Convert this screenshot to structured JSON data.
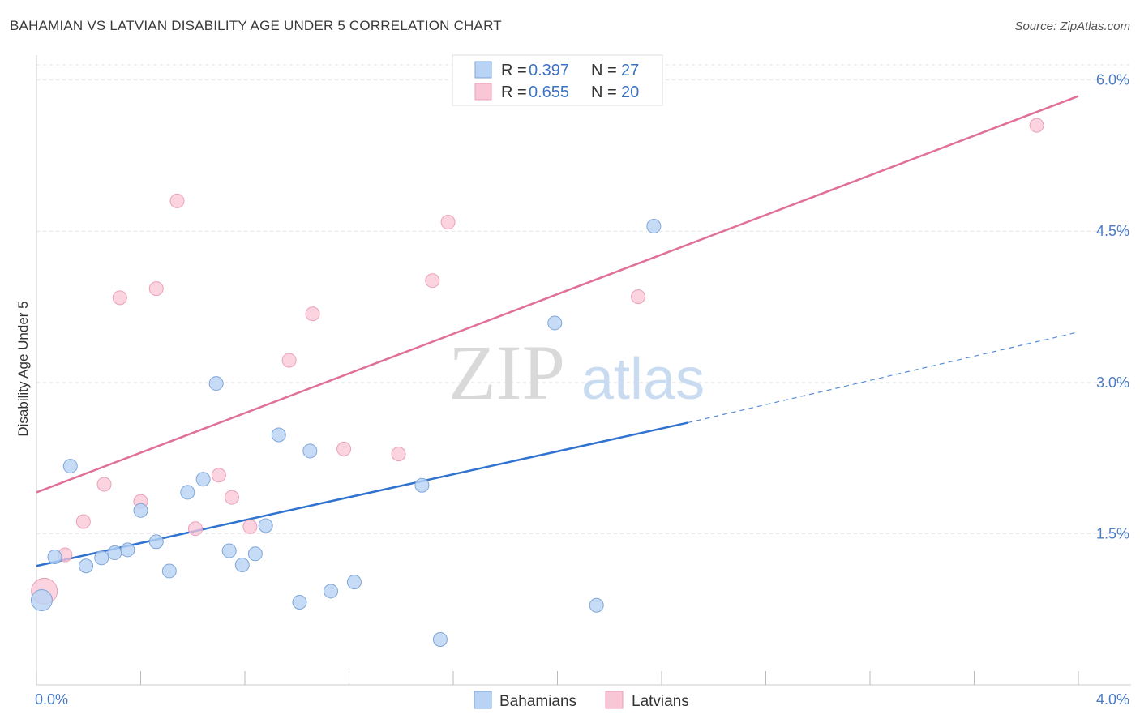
{
  "title": "BAHAMIAN VS LATVIAN DISABILITY AGE UNDER 5 CORRELATION CHART",
  "source": "Source: ZipAtlas.com",
  "watermark": {
    "zip": "ZIP",
    "atlas": "atlas"
  },
  "colors": {
    "bahamians_fill": "#b8d3f4",
    "bahamians_stroke": "#7fa6d9",
    "bahamians_line": "#2f72cf",
    "latvians_fill": "#f9c6d6",
    "latvians_stroke": "#eba0b8",
    "latvians_line": "#e07099"
  },
  "legend_top": [
    {
      "r_label": "R =",
      "r_value": "0.397",
      "n_label": "N =",
      "n_value": "27"
    },
    {
      "r_label": "R =",
      "r_value": "0.655",
      "n_label": "N =",
      "n_value": "20"
    }
  ],
  "chart_data": {
    "type": "scatter",
    "title": "BAHAMIAN VS LATVIAN DISABILITY AGE UNDER 5 CORRELATION CHART",
    "xlabel": "",
    "ylabel": "Disability Age Under 5",
    "xlim": [
      0,
      4.0
    ],
    "ylim": [
      0,
      6.15
    ],
    "x_tick_labels": [
      "0.0%",
      "4.0%"
    ],
    "y_ticks": [
      1.5,
      3.0,
      4.5,
      6.0
    ],
    "y_tick_labels": [
      "1.5%",
      "3.0%",
      "4.5%",
      "6.0%"
    ],
    "grid": true,
    "legend_placement": "bottom-center",
    "series": [
      {
        "name": "Bahamians",
        "points": [
          [
            0.02,
            0.84
          ],
          [
            0.07,
            1.27
          ],
          [
            0.13,
            2.17
          ],
          [
            0.19,
            1.18
          ],
          [
            0.25,
            1.26
          ],
          [
            0.3,
            1.31
          ],
          [
            0.35,
            1.34
          ],
          [
            0.4,
            1.73
          ],
          [
            0.46,
            1.42
          ],
          [
            0.51,
            1.13
          ],
          [
            0.58,
            1.91
          ],
          [
            0.64,
            2.04
          ],
          [
            0.69,
            2.99
          ],
          [
            0.74,
            1.33
          ],
          [
            0.79,
            1.19
          ],
          [
            0.84,
            1.3
          ],
          [
            0.88,
            1.58
          ],
          [
            0.93,
            2.48
          ],
          [
            1.01,
            0.82
          ],
          [
            1.05,
            2.32
          ],
          [
            1.13,
            0.93
          ],
          [
            1.22,
            1.02
          ],
          [
            1.48,
            1.98
          ],
          [
            1.55,
            0.45
          ],
          [
            1.99,
            3.59
          ],
          [
            2.15,
            0.79
          ],
          [
            2.37,
            4.55
          ]
        ],
        "trend": {
          "x0": 0.0,
          "y0": 1.18,
          "x1": 2.5,
          "y1": 2.6,
          "dashed_to_x": 4.0,
          "dashed_to_y": 3.5
        }
      },
      {
        "name": "Latvians",
        "points": [
          [
            0.03,
            0.93
          ],
          [
            0.11,
            1.29
          ],
          [
            0.18,
            1.62
          ],
          [
            0.26,
            1.99
          ],
          [
            0.32,
            3.84
          ],
          [
            0.4,
            1.82
          ],
          [
            0.46,
            3.93
          ],
          [
            0.54,
            4.8
          ],
          [
            0.61,
            1.55
          ],
          [
            0.7,
            2.08
          ],
          [
            0.75,
            1.86
          ],
          [
            0.82,
            1.57
          ],
          [
            0.97,
            3.22
          ],
          [
            1.06,
            3.68
          ],
          [
            1.18,
            2.34
          ],
          [
            1.39,
            2.29
          ],
          [
            1.52,
            4.01
          ],
          [
            1.58,
            4.59
          ],
          [
            2.31,
            3.85
          ],
          [
            3.84,
            5.55
          ]
        ],
        "trend": {
          "x0": 0.0,
          "y0": 1.91,
          "x1": 4.0,
          "y1": 5.84
        }
      }
    ]
  }
}
